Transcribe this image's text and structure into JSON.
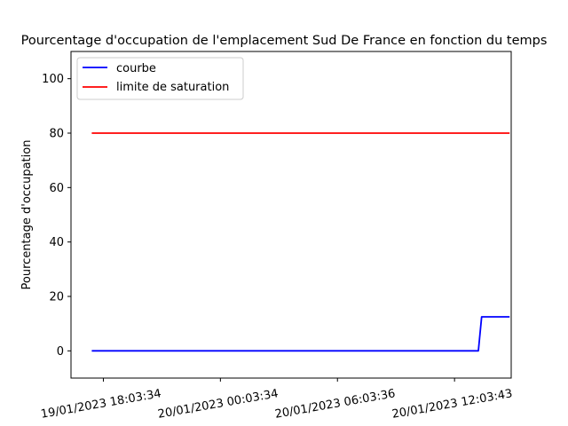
{
  "chart_data": {
    "type": "line",
    "title": "Pourcentage d'occupation de l'emplacement Sud De France en fonction du temps",
    "xlabel": "",
    "ylabel": "Pourcentage d'occupation",
    "ylim": [
      -10,
      110
    ],
    "yticks": [
      "0",
      "20",
      "40",
      "60",
      "80",
      "100"
    ],
    "xticks": [
      "19/01/2023 18:03:34",
      "20/01/2023 00:03:34",
      "20/01/2023 06:03:36",
      "20/01/2023 12:03:43"
    ],
    "x_range": [
      "19/01/2023 16:24",
      "20/01/2023 14:58"
    ],
    "grid": false,
    "legend_position": "upper-left",
    "series": [
      {
        "name": "courbe",
        "color": "#0000ff",
        "points": [
          {
            "x": "19/01/2023 17:28",
            "y": 0
          },
          {
            "x": "20/01/2023 13:17",
            "y": 0
          },
          {
            "x": "20/01/2023 13:27",
            "y": 12.5
          },
          {
            "x": "20/01/2023 14:53",
            "y": 12.5
          }
        ]
      },
      {
        "name": "limite de saturation",
        "color": "#ff0000",
        "points": [
          {
            "x": "19/01/2023 17:28",
            "y": 80
          },
          {
            "x": "20/01/2023 14:53",
            "y": 80
          }
        ]
      }
    ]
  }
}
